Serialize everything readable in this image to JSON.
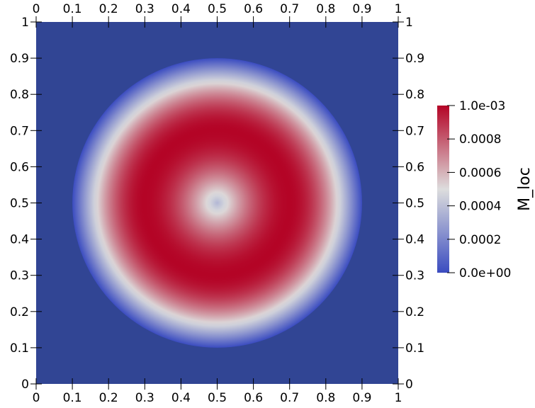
{
  "chart_data": {
    "type": "heatmap",
    "field": "radial ring: M_loc peaks at 1.0e-03 on a circle of radius 0.2 centred at (0.5, 0.5), falling to ~0.00037 at the centre and to 0 at radius ~0.4",
    "center": [
      0.5,
      0.5
    ],
    "ring_radius": 0.2,
    "peak_value": 0.001,
    "center_value": 0.00037,
    "outer_radius": 0.4,
    "xlim": [
      0,
      1
    ],
    "ylim": [
      0,
      1
    ],
    "x_ticks": [
      "0",
      "0.1",
      "0.2",
      "0.3",
      "0.4",
      "0.5",
      "0.6",
      "0.7",
      "0.8",
      "0.9",
      "1"
    ],
    "y_ticks": [
      "0",
      "0.1",
      "0.2",
      "0.3",
      "0.4",
      "0.5",
      "0.6",
      "0.7",
      "0.8",
      "0.9",
      "1"
    ],
    "colorbar": {
      "title": "M_loc",
      "range": [
        0,
        0.001
      ],
      "colormap": "cool-to-warm",
      "colors": [
        "#3b4cc0",
        "#dddddd",
        "#b40426"
      ],
      "ticks": [
        {
          "value": 0.001,
          "label": "1.0e-03"
        },
        {
          "value": 0.0008,
          "label": "0.0008"
        },
        {
          "value": 0.0006,
          "label": "0.0006"
        },
        {
          "value": 0.0004,
          "label": "0.0004"
        },
        {
          "value": 0.0002,
          "label": "0.0002"
        },
        {
          "value": 0.0,
          "label": "0.0e+00"
        }
      ]
    },
    "background_color": "#314594"
  }
}
